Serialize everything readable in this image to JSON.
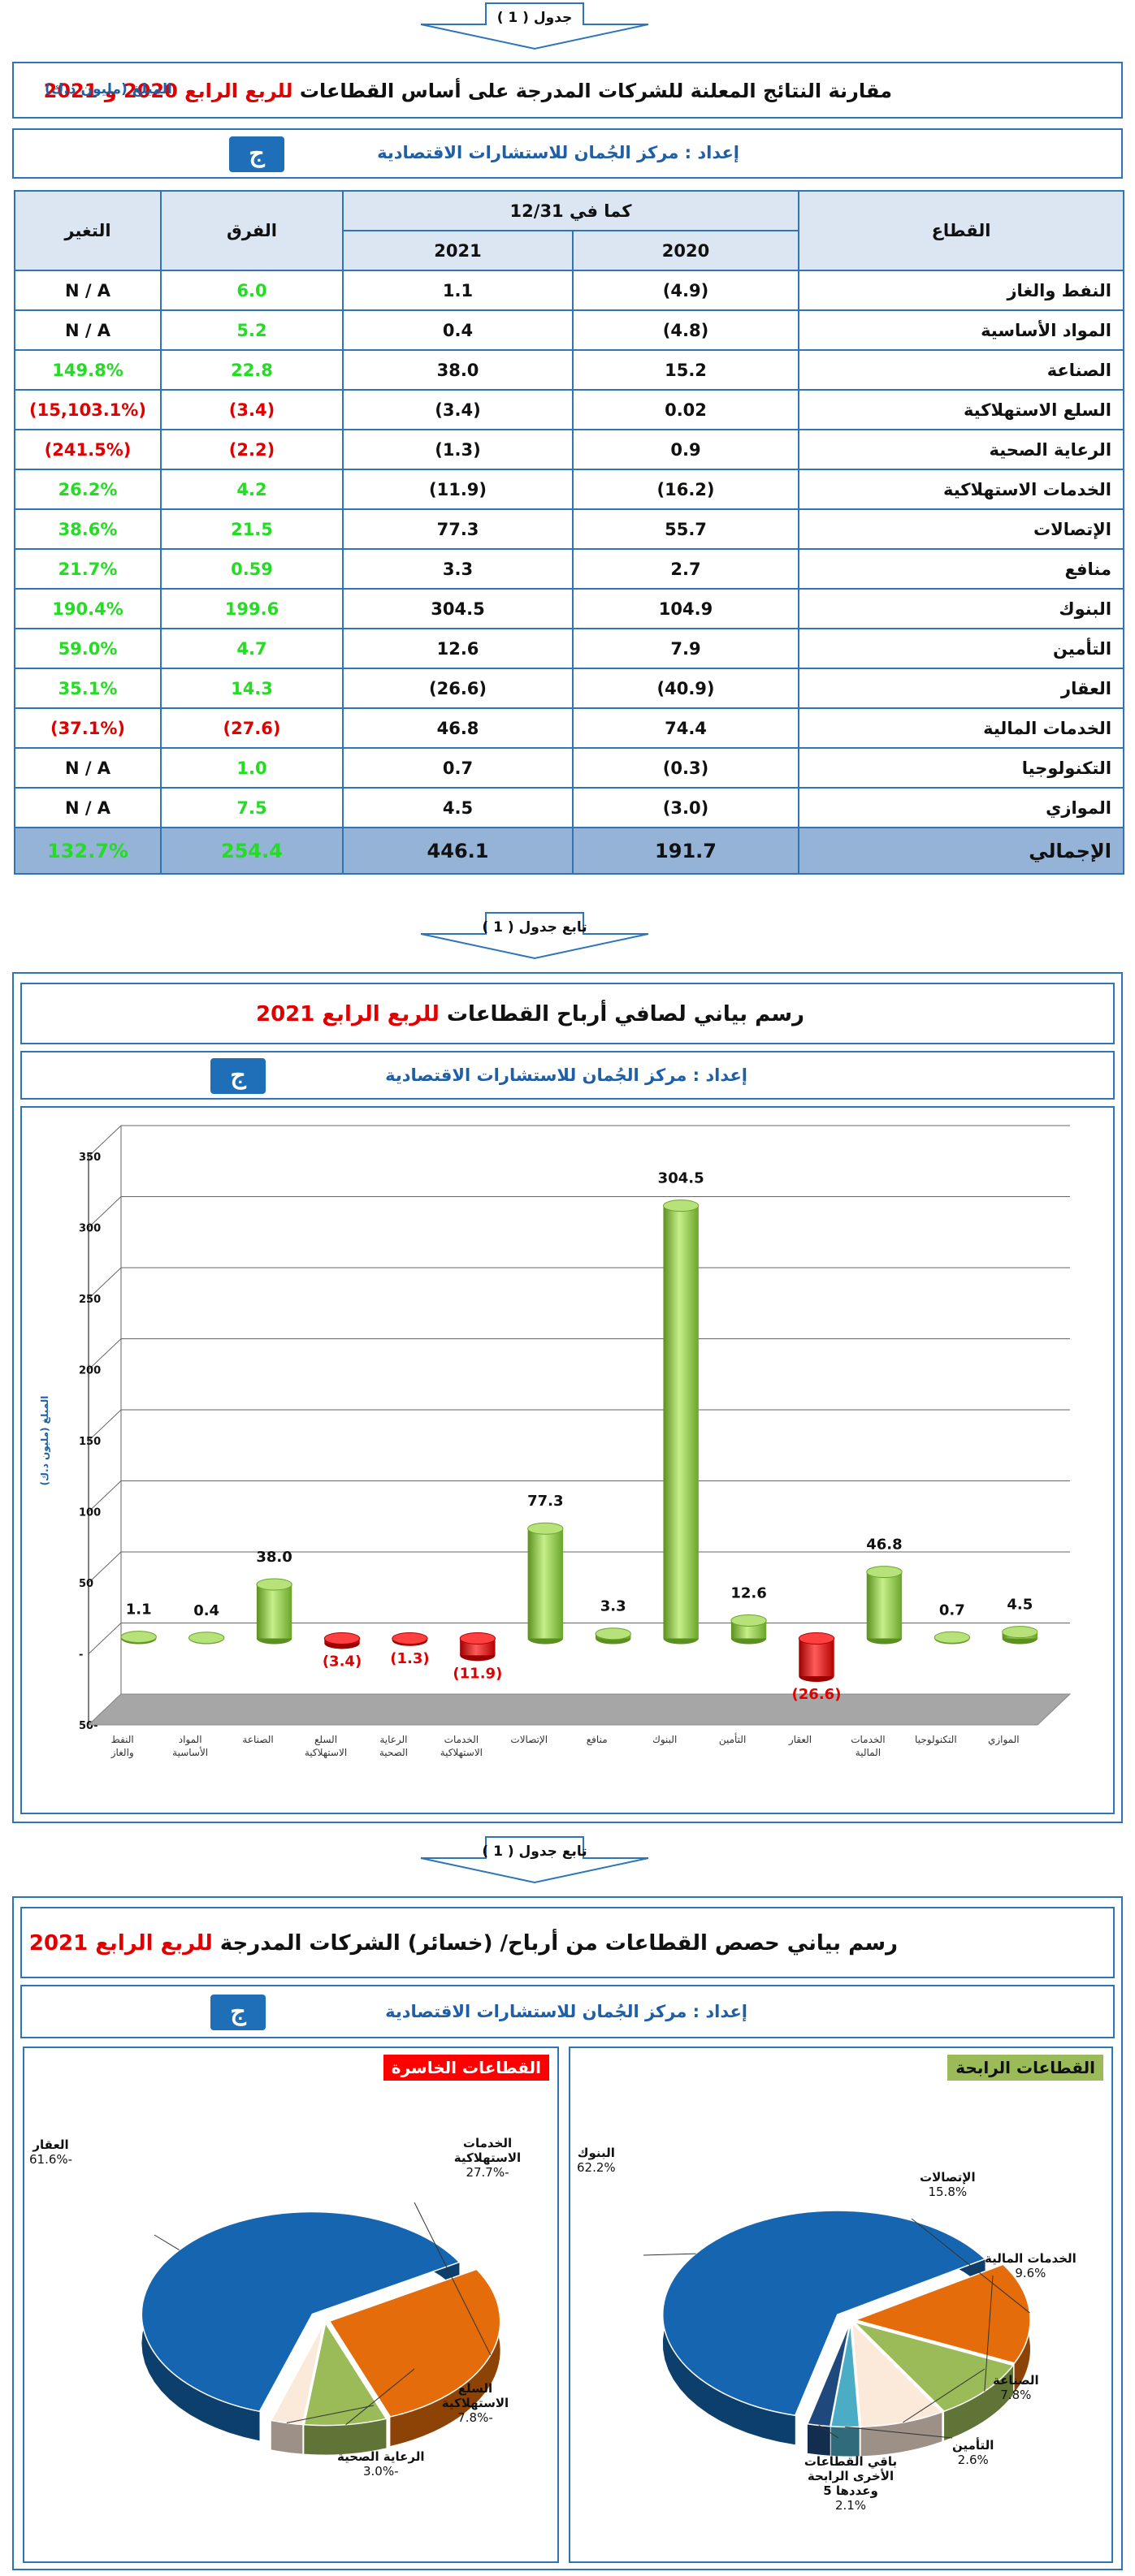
{
  "arrows": {
    "first": "جدول ( 1 )",
    "second": "تابع جدول ( 1 )",
    "third": "تابع جدول ( 1 )"
  },
  "table_title": {
    "main": "مقارنة النتائج المعلنة للشركات المدرجة على أساس القطاعات",
    "highlight": "للربع الرابع",
    "years": "2020 و 2021",
    "unit": "المبلغ (مليون د.ك)"
  },
  "prepared_by": "إعداد : مركز الجُمان للاستشارات الاقتصادية",
  "logo_glyph": "ج",
  "colors": {
    "border": "#2e75b6",
    "header_bg": "#dce6f2",
    "total_bg": "#95b3d7",
    "positive": "#22dd22",
    "negative": "#e00000",
    "bar_green": "#8cc63f",
    "bar_red": "#e00000",
    "pie_blue": "#1565b0",
    "pie_orange": "#e46c0a",
    "pie_olive": "#9bbb59",
    "pie_cream": "#fbe9da",
    "pie_teal": "#4bacc6"
  },
  "table": {
    "headers": {
      "sector": "القطاع",
      "as_of": "كما في 12/31",
      "y2020": "2020",
      "y2021": "2021",
      "diff": "الفرق",
      "change": "التغير"
    },
    "rows": [
      {
        "sector": "النفط والغاز",
        "y2020": "(4.9)",
        "y2021": "1.1",
        "diff": "6.0",
        "change": "N / A",
        "diff_sign": "pos",
        "change_sign": "none"
      },
      {
        "sector": "المواد الأساسية",
        "y2020": "(4.8)",
        "y2021": "0.4",
        "diff": "5.2",
        "change": "N / A",
        "diff_sign": "pos",
        "change_sign": "none"
      },
      {
        "sector": "الصناعة",
        "y2020": "15.2",
        "y2021": "38.0",
        "diff": "22.8",
        "change": "149.8%",
        "diff_sign": "pos",
        "change_sign": "pos"
      },
      {
        "sector": "السلع الاستهلاكية",
        "y2020": "0.02",
        "y2021": "(3.4)",
        "diff": "(3.4)",
        "change": "(15,103.1%)",
        "diff_sign": "neg",
        "change_sign": "neg"
      },
      {
        "sector": "الرعاية الصحية",
        "y2020": "0.9",
        "y2021": "(1.3)",
        "diff": "(2.2)",
        "change": "(241.5%)",
        "diff_sign": "neg",
        "change_sign": "neg"
      },
      {
        "sector": "الخدمات الاستهلاكية",
        "y2020": "(16.2)",
        "y2021": "(11.9)",
        "diff": "4.2",
        "change": "26.2%",
        "diff_sign": "pos",
        "change_sign": "pos"
      },
      {
        "sector": "الإتصالات",
        "y2020": "55.7",
        "y2021": "77.3",
        "diff": "21.5",
        "change": "38.6%",
        "diff_sign": "pos",
        "change_sign": "pos"
      },
      {
        "sector": "منافع",
        "y2020": "2.7",
        "y2021": "3.3",
        "diff": "0.59",
        "change": "21.7%",
        "diff_sign": "pos",
        "change_sign": "pos"
      },
      {
        "sector": "البنوك",
        "y2020": "104.9",
        "y2021": "304.5",
        "diff": "199.6",
        "change": "190.4%",
        "diff_sign": "pos",
        "change_sign": "pos"
      },
      {
        "sector": "التأمين",
        "y2020": "7.9",
        "y2021": "12.6",
        "diff": "4.7",
        "change": "59.0%",
        "diff_sign": "pos",
        "change_sign": "pos"
      },
      {
        "sector": "العقار",
        "y2020": "(40.9)",
        "y2021": "(26.6)",
        "diff": "14.3",
        "change": "35.1%",
        "diff_sign": "pos",
        "change_sign": "pos"
      },
      {
        "sector": "الخدمات المالية",
        "y2020": "74.4",
        "y2021": "46.8",
        "diff": "(27.6)",
        "change": "(37.1%)",
        "diff_sign": "neg",
        "change_sign": "neg"
      },
      {
        "sector": "التكنولوجيا",
        "y2020": "(0.3)",
        "y2021": "0.7",
        "diff": "1.0",
        "change": "N / A",
        "diff_sign": "pos",
        "change_sign": "none"
      },
      {
        "sector": "الموازي",
        "y2020": "(3.0)",
        "y2021": "4.5",
        "diff": "7.5",
        "change": "N / A",
        "diff_sign": "pos",
        "change_sign": "none"
      }
    ],
    "total": {
      "sector": "الإجمالي",
      "y2020": "191.7",
      "y2021": "446.1",
      "diff": "254.4",
      "change": "132.7%"
    }
  },
  "bar_title": {
    "main": "رسم بياني لصافي أرباح القطاعات",
    "highlight": "للربع الرابع",
    "year": "2021"
  },
  "pie_title": {
    "main": "رسم بياني حصص القطاعات من أرباح/ (خسائر) الشركات المدرجة",
    "highlight": "للربع الرابع",
    "year": "2021"
  },
  "chart_data": [
    {
      "type": "bar",
      "title": "رسم بياني لصافي أرباح القطاعات للربع الرابع 2021",
      "ylabel": "المبلغ (مليون د.ك)",
      "ylim": [
        -50,
        350
      ],
      "yticks": [
        "350",
        "300",
        "250",
        "200",
        "150",
        "100",
        "50",
        "-",
        "-50"
      ],
      "grid": true,
      "categories": [
        "النفط والغاز",
        "المواد الأساسية",
        "الصناعة",
        "السلع الاستهلاكية",
        "الرعاية الصحية",
        "الخدمات الاستهلاكية",
        "الإتصالات",
        "منافع",
        "البنوك",
        "التأمين",
        "العقار",
        "الخدمات المالية",
        "التكنولوجيا",
        "الموازي"
      ],
      "values": [
        1.1,
        0.4,
        38.0,
        -3.4,
        -1.3,
        -11.9,
        77.3,
        3.3,
        304.5,
        12.6,
        -26.6,
        46.8,
        0.7,
        4.5
      ],
      "labels": [
        "1.1",
        "0.4",
        "38.0",
        "(3.4)",
        "(1.3)",
        "(11.9)",
        "77.3",
        "3.3",
        "304.5",
        "12.6",
        "(26.6)",
        "46.8",
        "0.7",
        "4.5"
      ]
    },
    {
      "type": "pie",
      "title": "القطاعات الرابحة",
      "slices": [
        {
          "label": "البنوك",
          "value": 62.2,
          "text": "62.2%",
          "color": "#1565b0"
        },
        {
          "label": "الإتصالات",
          "value": 15.8,
          "text": "15.8%",
          "color": "#e46c0a"
        },
        {
          "label": "الخدمات المالية",
          "value": 9.6,
          "text": "9.6%",
          "color": "#9bbb59"
        },
        {
          "label": "الصناعة",
          "value": 7.8,
          "text": "7.8%",
          "color": "#fbe9da"
        },
        {
          "label": "التأمين",
          "value": 2.6,
          "text": "2.6%",
          "color": "#4bacc6"
        },
        {
          "label": "باقي القطاعات الأخرى الرابحة وعددها 5",
          "value": 2.1,
          "text": "2.1%",
          "color": "#1f497d"
        }
      ]
    },
    {
      "type": "pie",
      "title": "القطاعات الخاسرة",
      "slices": [
        {
          "label": "العقار",
          "value": 61.6,
          "text": "-61.6%",
          "color": "#1565b0"
        },
        {
          "label": "الخدمات الاستهلاكية",
          "value": 27.7,
          "text": "-27.7%",
          "color": "#e46c0a"
        },
        {
          "label": "السلع الاستهلاكية",
          "value": 7.8,
          "text": "-7.8%",
          "color": "#9bbb59"
        },
        {
          "label": "الرعاية الصحية",
          "value": 3.0,
          "text": "-3.0%",
          "color": "#fbe9da"
        }
      ]
    }
  ]
}
